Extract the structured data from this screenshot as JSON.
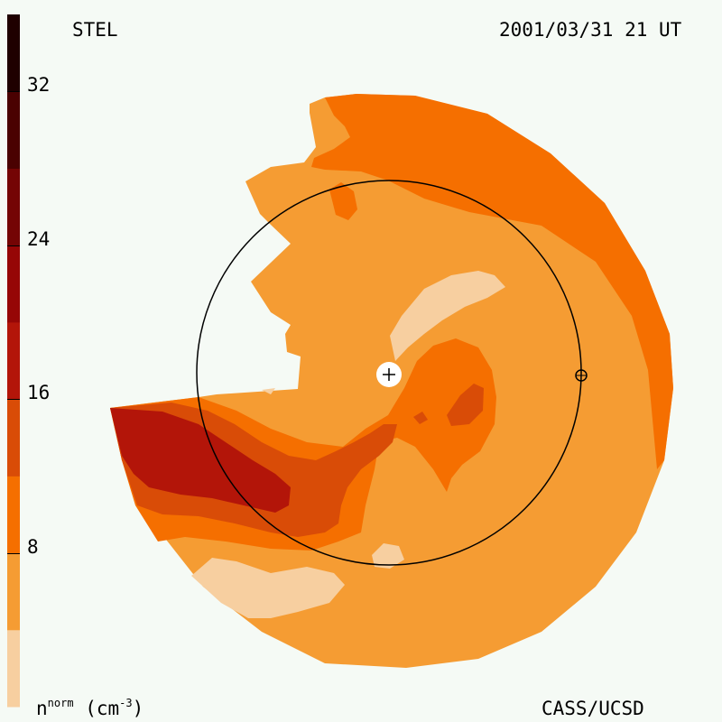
{
  "chart_data": {
    "type": "heatmap",
    "instrument": "STEL",
    "datetime": "2001/03/31 21 UT",
    "credit": "CASS/UCSD",
    "colorbar": {
      "label_base": "n",
      "label_sup": "norm",
      "label_unit": "(cm",
      "label_unit_sup": "-3",
      "label_close": ")",
      "range": [
        0,
        36
      ],
      "ticks": [
        8,
        16,
        24,
        32
      ],
      "levels": [
        {
          "min": 0,
          "max": 4,
          "color": "#f7cfa0"
        },
        {
          "min": 4,
          "max": 8,
          "color": "#f59c33"
        },
        {
          "min": 8,
          "max": 12,
          "color": "#f56f00"
        },
        {
          "min": 12,
          "max": 16,
          "color": "#d94c07"
        },
        {
          "min": 16,
          "max": 20,
          "color": "#b31509"
        },
        {
          "min": 20,
          "max": 24,
          "color": "#960606"
        },
        {
          "min": 24,
          "max": 28,
          "color": "#740404"
        },
        {
          "min": 28,
          "max": 32,
          "color": "#4a0101"
        },
        {
          "min": 32,
          "max": 36,
          "color": "#1f0000"
        }
      ]
    },
    "markers": [
      "sun",
      "earth"
    ],
    "earth_orbit": "circle"
  }
}
